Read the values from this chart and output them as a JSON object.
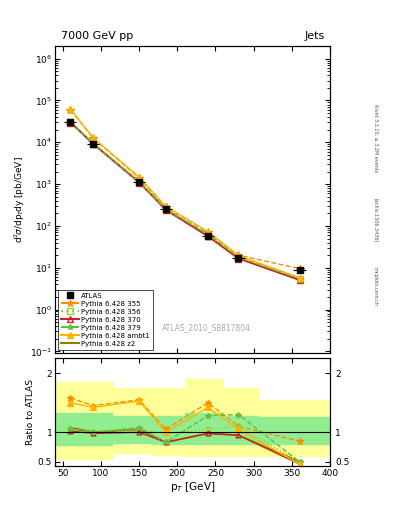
{
  "title_left": "7000 GeV pp",
  "title_right": "Jets",
  "ylabel_top": "d²σ/dp_T dy [pb/GeV]",
  "ylabel_bottom": "Ratio to ATLAS",
  "xlabel": "p_T [GeV]",
  "watermark": "ATLAS_2010_S8817804",
  "rivet_text": "Rivet 3.1.10, ≥ 3.2M events",
  "arxiv_text": "[arXiv:1306.3436]",
  "mcplots_text": "mcplots.cern.ch",
  "pt_values": [
    60,
    90,
    150,
    185,
    240,
    280,
    360
  ],
  "atlas_y": [
    30000.0,
    9000.0,
    1100.0,
    250,
    57,
    17,
    9.0
  ],
  "atlas_xerr": [
    8,
    8,
    8,
    8,
    8,
    8,
    8
  ],
  "atlas_yerr_lo": [
    2000.0,
    600.0,
    70.0,
    15,
    4,
    1.2,
    0.7
  ],
  "atlas_yerr_hi": [
    2000.0,
    600.0,
    70.0,
    15,
    4,
    1.2,
    0.7
  ],
  "p355_y": [
    60000.0,
    12500.0,
    1400.0,
    280,
    72,
    20,
    9.5
  ],
  "p356_y": [
    30500.0,
    9400.0,
    1130.0,
    248,
    59,
    17,
    5.5
  ],
  "p370_y": [
    29500.0,
    9000.0,
    1080.0,
    238,
    56,
    16.5,
    5.0
  ],
  "p379_y": [
    30500.0,
    9400.0,
    1130.0,
    248,
    65,
    18,
    5.5
  ],
  "pambt1_y": [
    63000.0,
    12800.0,
    1480.0,
    295,
    73,
    19.5,
    5.8
  ],
  "pz2_y": [
    31000.0,
    9300.0,
    1150.0,
    252,
    59,
    17,
    5.2
  ],
  "ratio_pt": [
    60,
    90,
    150,
    185,
    240,
    280,
    360
  ],
  "ratio_355": [
    1.58,
    1.45,
    1.55,
    1.05,
    1.5,
    1.1,
    0.85
  ],
  "ratio_356": [
    1.05,
    1.0,
    1.05,
    0.98,
    1.05,
    1.1,
    0.5
  ],
  "ratio_370": [
    1.02,
    0.98,
    1.0,
    0.83,
    0.98,
    0.95,
    0.46
  ],
  "ratio_379": [
    1.05,
    1.0,
    1.08,
    0.83,
    1.28,
    1.3,
    0.5
  ],
  "ratio_ambt1": [
    1.5,
    1.42,
    1.53,
    1.0,
    1.42,
    1.05,
    0.46
  ],
  "ratio_z2": [
    1.08,
    1.0,
    1.05,
    0.83,
    0.98,
    0.95,
    0.5
  ],
  "band_yellow_x": [
    40,
    75,
    115,
    165,
    210,
    260,
    305,
    385,
    410
  ],
  "band_yellow_lo": [
    0.55,
    0.55,
    0.65,
    0.62,
    0.6,
    0.6,
    0.6,
    0.6,
    0.6
  ],
  "band_yellow_hi": [
    1.85,
    1.85,
    1.75,
    1.75,
    1.9,
    1.75,
    1.55,
    1.55,
    1.55
  ],
  "band_green_x": [
    40,
    75,
    115,
    165,
    210,
    260,
    305,
    385,
    410
  ],
  "band_green_lo": [
    0.78,
    0.78,
    0.82,
    0.8,
    0.8,
    0.8,
    0.8,
    0.8,
    0.8
  ],
  "band_green_hi": [
    1.32,
    1.32,
    1.28,
    1.28,
    1.32,
    1.28,
    1.25,
    1.25,
    1.25
  ],
  "color_355": "#ff8c00",
  "color_356": "#9acd32",
  "color_370": "#cc2222",
  "color_379": "#66bb44",
  "color_ambt1": "#ffb300",
  "color_z2": "#8b8000",
  "color_atlas": "#000000",
  "color_yellow": "#ffff99",
  "color_green": "#90ee90",
  "xlim": [
    40,
    400
  ],
  "ylim_top_lo": 0.09,
  "ylim_top_hi": 2000000,
  "ylim_bottom_lo": 0.43,
  "ylim_bottom_hi": 2.25
}
